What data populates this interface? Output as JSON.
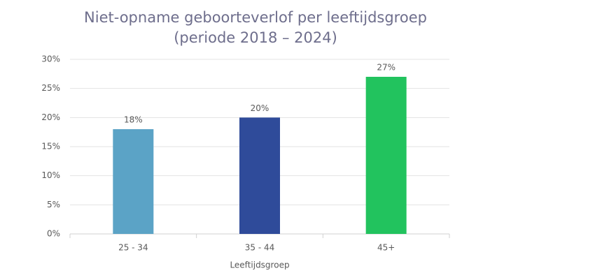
{
  "chart_data": {
    "type": "bar",
    "title": "Niet-opname geboorteverlof per leeftijdsgroep",
    "subtitle": "(periode 2018 – 2024)",
    "x_label": "Leeftijdsgroep",
    "categories": [
      "25 - 34",
      "35 - 44",
      "45+"
    ],
    "values": [
      18,
      20,
      27
    ],
    "value_labels": [
      "18%",
      "20%",
      "27%"
    ],
    "colors": [
      "#5ba3c6",
      "#2f4b9a",
      "#22c35e"
    ],
    "ylim": [
      0,
      30
    ],
    "yticks": [
      {
        "value": 0,
        "label": "0%"
      },
      {
        "value": 5,
        "label": "5%"
      },
      {
        "value": 10,
        "label": "10%"
      },
      {
        "value": 15,
        "label": "15%"
      },
      {
        "value": 20,
        "label": "20%"
      },
      {
        "value": 25,
        "label": "25%"
      },
      {
        "value": 30,
        "label": "30%"
      }
    ],
    "grid": true
  }
}
